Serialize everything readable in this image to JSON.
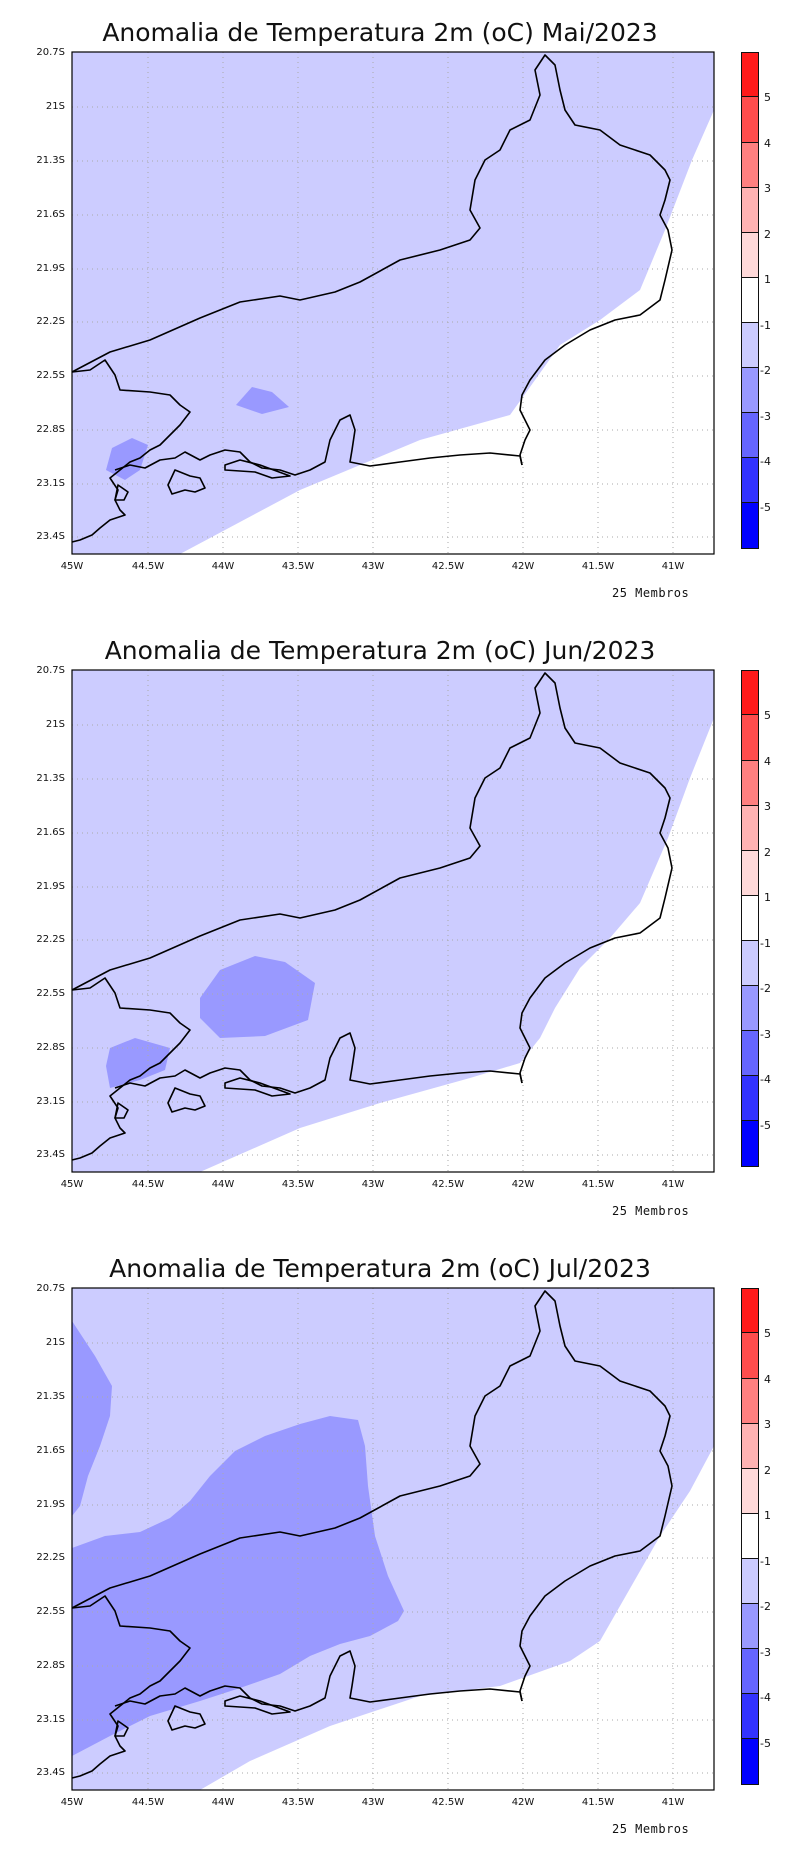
{
  "maps": [
    {
      "id": "mai",
      "title": "Anomalia de Temperatura 2m (oC) Mai/2023",
      "members": "25 Membros"
    },
    {
      "id": "jun",
      "title": "Anomalia de Temperatura 2m (oC) Jun/2023",
      "members": "25 Membros"
    },
    {
      "id": "jul",
      "title": "Anomalia de Temperatura 2m (oC) Jul/2023",
      "members": "25 Membros"
    }
  ],
  "y_labels": [
    "20.7S",
    "21S",
    "21.3S",
    "21.6S",
    "21.9S",
    "22.2S",
    "22.5S",
    "22.8S",
    "23.1S",
    "23.4S"
  ],
  "x_labels": [
    "45W",
    "44.5W",
    "44W",
    "43.5W",
    "43W",
    "42.5W",
    "42W",
    "41.5W",
    "41W"
  ],
  "colorbar": {
    "labels": [
      "5",
      "4",
      "3",
      "2",
      "1",
      "-1",
      "-2",
      "-3",
      "-4",
      "-5"
    ],
    "colors": [
      "#ff1a1a",
      "#ff4d4d",
      "#ff8080",
      "#ffb3b3",
      "#ffd9d9",
      "#ffffff",
      "#ccccff",
      "#9999ff",
      "#6666ff",
      "#3333ff",
      "#0000ff"
    ]
  },
  "legend_colors": {
    "light": "#ccccff",
    "mid": "#9999ff"
  }
}
